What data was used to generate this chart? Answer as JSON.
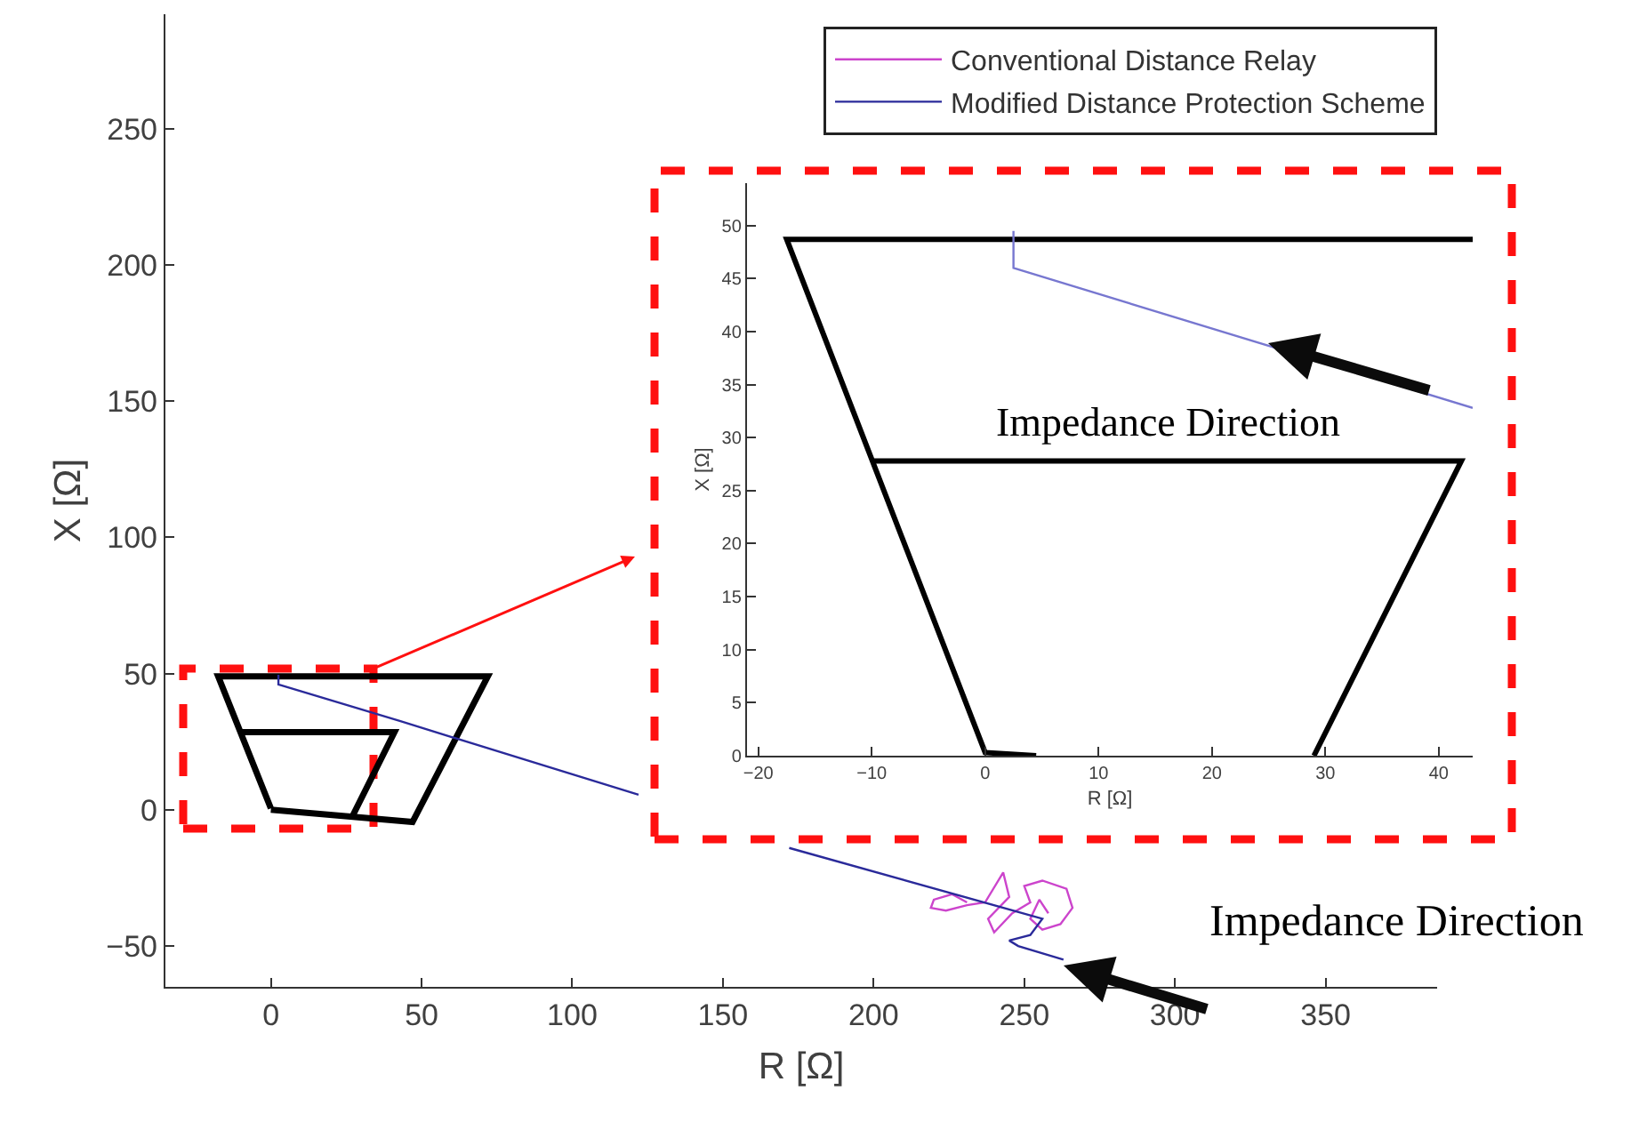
{
  "chart_data": [
    {
      "type": "line",
      "xlabel": "R [Ω]",
      "ylabel": "X [Ω]",
      "xlim": [
        -35,
        387
      ],
      "ylim": [
        -65,
        292
      ],
      "xticks": [
        0,
        50,
        100,
        150,
        200,
        250,
        300,
        350
      ],
      "yticks": [
        -50,
        0,
        50,
        100,
        150,
        200,
        250
      ],
      "grid": false,
      "legend": "top right",
      "marker": "none",
      "line_style": "solid",
      "annotations": [
        "Impedance Direction"
      ],
      "series": [
        {
          "color": "#000000",
          "x": [
            0,
            -17.5,
            72,
            47,
            0
          ],
          "values": [
            0.5,
            49,
            49,
            -4.5,
            0
          ]
        },
        {
          "color": "#000000",
          "x": [
            -10,
            41,
            27
          ],
          "values": [
            28.5,
            28.5,
            -2.5
          ]
        },
        {
          "name": "Conventional Distance Relay",
          "color": "#cc44cc",
          "x": [
            231,
            226,
            220,
            219,
            224,
            231,
            237,
            243,
            245,
            238,
            240,
            246,
            252,
            250,
            256,
            264,
            266,
            262,
            256,
            252,
            255,
            258
          ],
          "values": [
            -34,
            -31,
            -33,
            -36,
            -37,
            -35,
            -34,
            -23,
            -32,
            -40,
            -45,
            -38,
            -34,
            -28,
            -26,
            -29,
            -36,
            -42,
            -44,
            -40,
            -33,
            -38
          ]
        },
        {
          "name": "Modified Distance Protection Scheme",
          "color": "#2a2a9a",
          "x": [
            2.5,
            2.5,
            43,
            122,
            null,
            172,
            256,
            252,
            245,
            248,
            263
          ],
          "values": [
            49.5,
            46,
            32.5,
            5.5,
            null,
            -14,
            -40,
            -46,
            -48,
            -50,
            -55
          ]
        }
      ]
    },
    {
      "type": "line",
      "xlabel": "R [Ω]",
      "ylabel": "X [Ω]",
      "xlim": [
        -21,
        43
      ],
      "ylim": [
        0,
        54
      ],
      "xticks": [
        -20,
        -10,
        0,
        10,
        20,
        30,
        40
      ],
      "yticks": [
        0,
        5,
        10,
        15,
        20,
        25,
        30,
        35,
        40,
        45,
        50
      ],
      "grid": false,
      "marker": "none",
      "line_style": "solid",
      "annotations": [
        "Impedance Direction"
      ],
      "series": [
        {
          "color": "#000000",
          "x": [
            4.5,
            0,
            -17.5,
            43
          ],
          "values": [
            0,
            0.3,
            48.7,
            48.7
          ]
        },
        {
          "color": "#000000",
          "x": [
            -10,
            42,
            29
          ],
          "values": [
            27.8,
            27.8,
            0
          ]
        },
        {
          "color": "#7777d0",
          "x": [
            2.5,
            2.5,
            43
          ],
          "values": [
            49.5,
            46,
            32.8
          ]
        }
      ]
    }
  ]
}
